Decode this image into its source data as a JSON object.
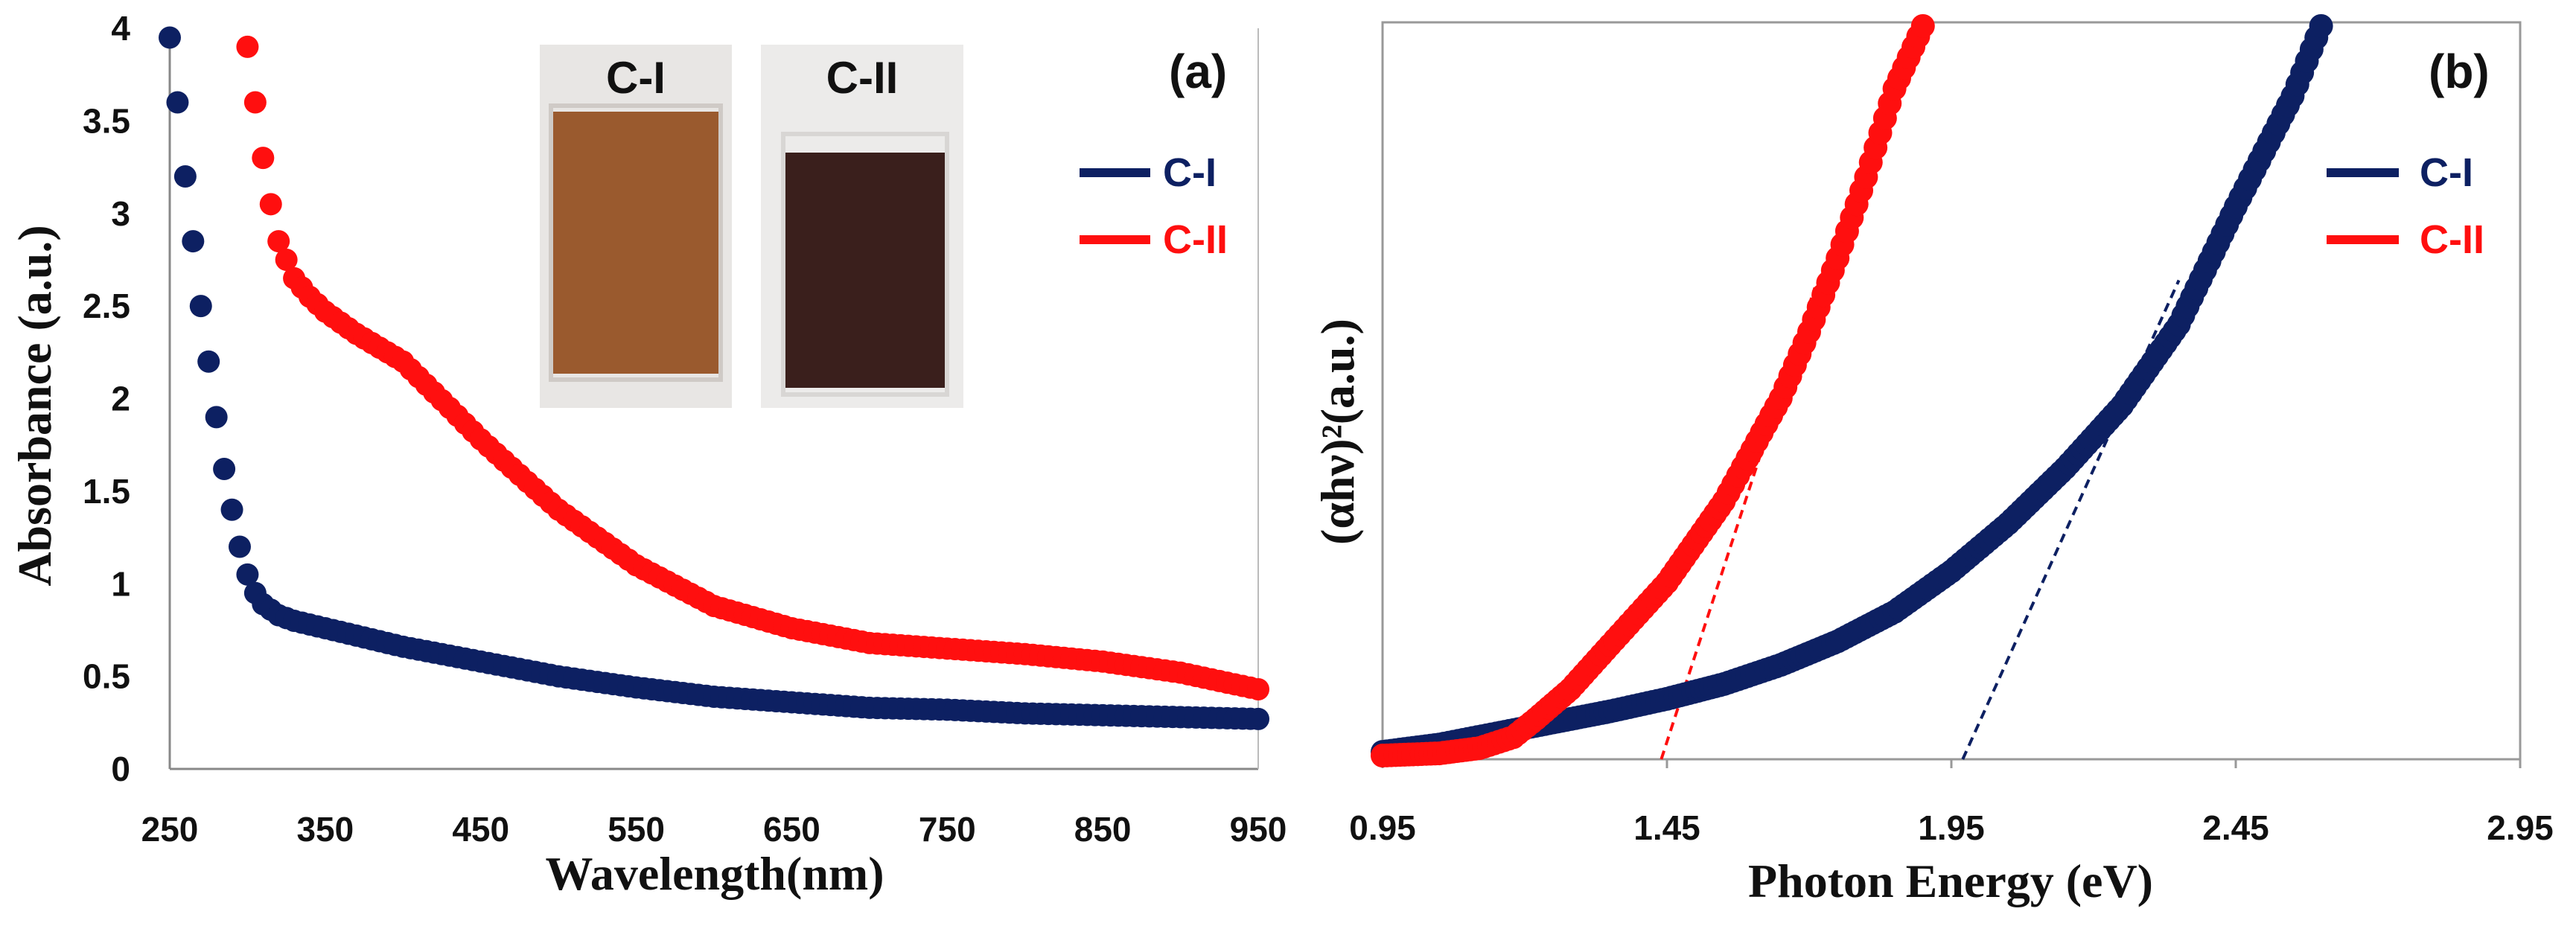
{
  "colors": {
    "c1": "#0d2062",
    "c2": "#ff0f0f"
  },
  "chart_data": [
    {
      "type": "scatter",
      "panel_label": "(a)",
      "xlabel": "Wavelength(nm)",
      "ylabel": "Absorbance (a.u.)",
      "xlim": [
        250,
        950
      ],
      "ylim": [
        0,
        4
      ],
      "xticks": [
        "250",
        "350",
        "450",
        "550",
        "650",
        "750",
        "850",
        "950"
      ],
      "yticks": [
        "0",
        "0.5",
        "1",
        "1.5",
        "2",
        "2.5",
        "3",
        "3.5",
        "4"
      ],
      "legend_position": "top-right",
      "inset": {
        "labels": [
          "C-I",
          "C-II"
        ],
        "description_visible": false
      },
      "series": [
        {
          "name": "C-I",
          "color": "#0d2062",
          "x": [
            250,
            255,
            260,
            265,
            270,
            275,
            280,
            285,
            290,
            295,
            300,
            305,
            310,
            320,
            330,
            350,
            400,
            450,
            500,
            550,
            600,
            650,
            700,
            750,
            800,
            850,
            900,
            950
          ],
          "y": [
            3.95,
            3.6,
            3.2,
            2.85,
            2.5,
            2.2,
            1.9,
            1.62,
            1.4,
            1.2,
            1.05,
            0.95,
            0.89,
            0.83,
            0.8,
            0.76,
            0.66,
            0.58,
            0.5,
            0.44,
            0.39,
            0.36,
            0.33,
            0.32,
            0.3,
            0.29,
            0.28,
            0.27
          ]
        },
        {
          "name": "C-II",
          "color": "#ff0f0f",
          "x": [
            300,
            305,
            310,
            315,
            320,
            330,
            340,
            350,
            370,
            400,
            430,
            450,
            480,
            500,
            550,
            600,
            650,
            700,
            750,
            800,
            850,
            900,
            950
          ],
          "y": [
            3.9,
            3.6,
            3.3,
            3.05,
            2.85,
            2.65,
            2.55,
            2.47,
            2.35,
            2.2,
            1.95,
            1.78,
            1.55,
            1.4,
            1.1,
            0.88,
            0.76,
            0.68,
            0.65,
            0.62,
            0.58,
            0.52,
            0.43
          ]
        }
      ]
    },
    {
      "type": "scatter",
      "panel_label": "(b)",
      "xlabel": "Photon Energy (eV)",
      "ylabel": "(αhν)²(a.u.)",
      "xlim": [
        0.95,
        2.95
      ],
      "ylim": [
        0,
        10
      ],
      "xticks": [
        "0.95",
        "1.45",
        "1.95",
        "2.45",
        "2.95"
      ],
      "legend_position": "top-right",
      "series": [
        {
          "name": "C-I",
          "color": "#0d2062",
          "x": [
            0.95,
            1.05,
            1.15,
            1.25,
            1.35,
            1.45,
            1.55,
            1.65,
            1.75,
            1.85,
            1.95,
            2.05,
            2.15,
            2.25,
            2.35,
            2.45,
            2.55,
            2.6
          ],
          "y": [
            0.1,
            0.2,
            0.35,
            0.5,
            0.65,
            0.82,
            1.02,
            1.28,
            1.6,
            2.0,
            2.55,
            3.2,
            3.95,
            4.8,
            5.9,
            7.5,
            9.0,
            9.95
          ]
        },
        {
          "name": "C-II",
          "color": "#ff0f0f",
          "x": [
            0.95,
            1.05,
            1.12,
            1.18,
            1.22,
            1.28,
            1.35,
            1.45,
            1.55,
            1.65,
            1.7,
            1.75,
            1.8,
            1.85,
            1.9
          ],
          "y": [
            0.05,
            0.08,
            0.15,
            0.3,
            0.55,
            0.95,
            1.55,
            2.4,
            3.5,
            4.9,
            5.8,
            6.8,
            7.9,
            9.1,
            9.95
          ]
        }
      ],
      "fit_lines": [
        {
          "series": "C-I",
          "x": [
            1.97,
            2.35
          ],
          "y": [
            0.0,
            6.5
          ]
        },
        {
          "series": "C-II",
          "x": [
            1.44,
            1.71
          ],
          "y": [
            0.0,
            6.4
          ]
        }
      ]
    }
  ]
}
